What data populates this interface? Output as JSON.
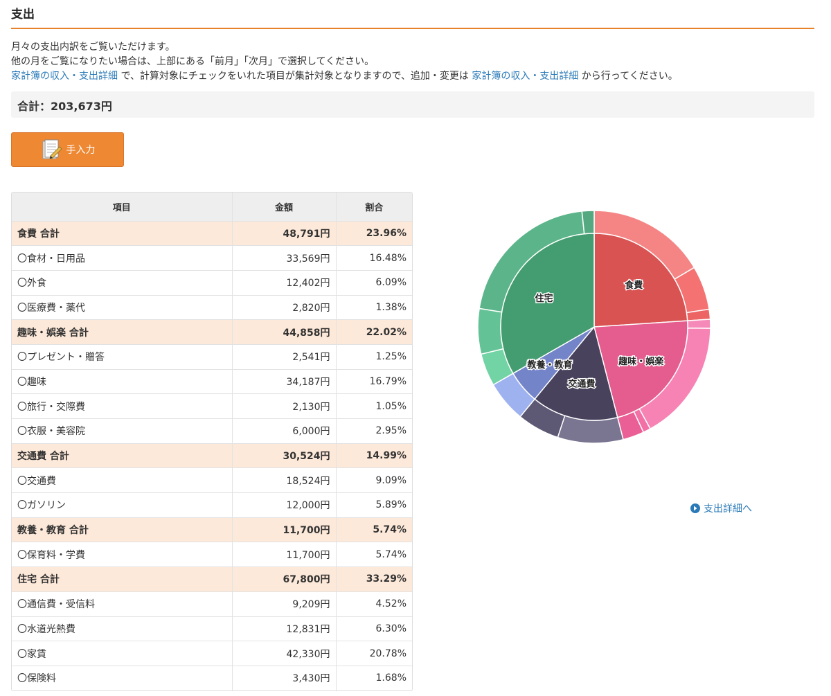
{
  "page": {
    "title": "支出"
  },
  "description": {
    "line1": "月々の支出内訳をご覧いただけます。",
    "line2": "他の月をご覧になりたい場合は、上部にある「前月」「次月」で選択してください。",
    "link1": "家計簿の収入・支出詳細",
    "mid": " で、計算対象にチェックをいれた項目が集計対象となりますので、追加・変更は ",
    "link2": "家計簿の収入・支出詳細",
    "tail": " から行ってください。"
  },
  "total": {
    "label": "合計：203,673円"
  },
  "manual_button": {
    "label": "手入力",
    "icon": "memo-pencil-icon"
  },
  "table": {
    "headers": [
      "項目",
      "金額",
      "割合"
    ],
    "rows": [
      {
        "type": "group",
        "name": "食費 合計",
        "amount": "48,791円",
        "ratio": "23.96%"
      },
      {
        "type": "item",
        "name": "〇食材・日用品",
        "amount": "33,569円",
        "ratio": "16.48%"
      },
      {
        "type": "item",
        "name": "〇外食",
        "amount": "12,402円",
        "ratio": "6.09%"
      },
      {
        "type": "item",
        "name": "〇医療費・薬代",
        "amount": "2,820円",
        "ratio": "1.38%"
      },
      {
        "type": "group",
        "name": "趣味・娯楽 合計",
        "amount": "44,858円",
        "ratio": "22.02%"
      },
      {
        "type": "item",
        "name": "〇プレゼント・贈答",
        "amount": "2,541円",
        "ratio": "1.25%"
      },
      {
        "type": "item",
        "name": "〇趣味",
        "amount": "34,187円",
        "ratio": "16.79%"
      },
      {
        "type": "item",
        "name": "〇旅行・交際費",
        "amount": "2,130円",
        "ratio": "1.05%"
      },
      {
        "type": "item",
        "name": "〇衣服・美容院",
        "amount": "6,000円",
        "ratio": "2.95%"
      },
      {
        "type": "group",
        "name": "交通費 合計",
        "amount": "30,524円",
        "ratio": "14.99%"
      },
      {
        "type": "item",
        "name": "〇交通費",
        "amount": "18,524円",
        "ratio": "9.09%"
      },
      {
        "type": "item",
        "name": "〇ガソリン",
        "amount": "12,000円",
        "ratio": "5.89%"
      },
      {
        "type": "group",
        "name": "教養・教育 合計",
        "amount": "11,700円",
        "ratio": "5.74%"
      },
      {
        "type": "item",
        "name": "〇保育料・学費",
        "amount": "11,700円",
        "ratio": "5.74%"
      },
      {
        "type": "group",
        "name": "住宅 合計",
        "amount": "67,800円",
        "ratio": "33.29%"
      },
      {
        "type": "item",
        "name": "〇通信費・受信料",
        "amount": "9,209円",
        "ratio": "4.52%"
      },
      {
        "type": "item",
        "name": "〇水道光熱費",
        "amount": "12,831円",
        "ratio": "6.30%"
      },
      {
        "type": "item",
        "name": "〇家賃",
        "amount": "42,330円",
        "ratio": "20.78%"
      },
      {
        "type": "item",
        "name": "〇保険料",
        "amount": "3,430円",
        "ratio": "1.68%"
      }
    ]
  },
  "chart_data": {
    "type": "pie",
    "categories": [
      {
        "name": "食費",
        "value": 48791,
        "color": "#d95353",
        "items": [
          {
            "value": 33569,
            "color": "#f58585"
          },
          {
            "value": 12402,
            "color": "#f47272"
          },
          {
            "value": 2820,
            "color": "#ec6464"
          }
        ]
      },
      {
        "name": "趣味・娯楽",
        "value": 44858,
        "color": "#e55d8e",
        "items": [
          {
            "value": 2541,
            "color": "#f58ab8"
          },
          {
            "value": 34187,
            "color": "#f783b5"
          },
          {
            "value": 2130,
            "color": "#f270a6"
          },
          {
            "value": 6000,
            "color": "#ea5f96"
          }
        ]
      },
      {
        "name": "交通費",
        "value": 30524,
        "color": "#48425d",
        "items": [
          {
            "value": 18524,
            "color": "#7a7590"
          },
          {
            "value": 12000,
            "color": "#5d5873"
          }
        ]
      },
      {
        "name": "教養・教育",
        "value": 11700,
        "color": "#7384c9",
        "items": [
          {
            "value": 11700,
            "color": "#9fb2f0"
          }
        ]
      },
      {
        "name": "住宅",
        "value": 67800,
        "color": "#449d70",
        "items": [
          {
            "value": 9209,
            "color": "#72d3a4"
          },
          {
            "value": 12831,
            "color": "#64c396"
          },
          {
            "value": 42330,
            "color": "#5cb58a"
          },
          {
            "value": 3430,
            "color": "#55a980"
          }
        ]
      }
    ]
  },
  "detail_link": {
    "label": "支出詳細へ",
    "icon": "circle-arrow-right-icon"
  }
}
